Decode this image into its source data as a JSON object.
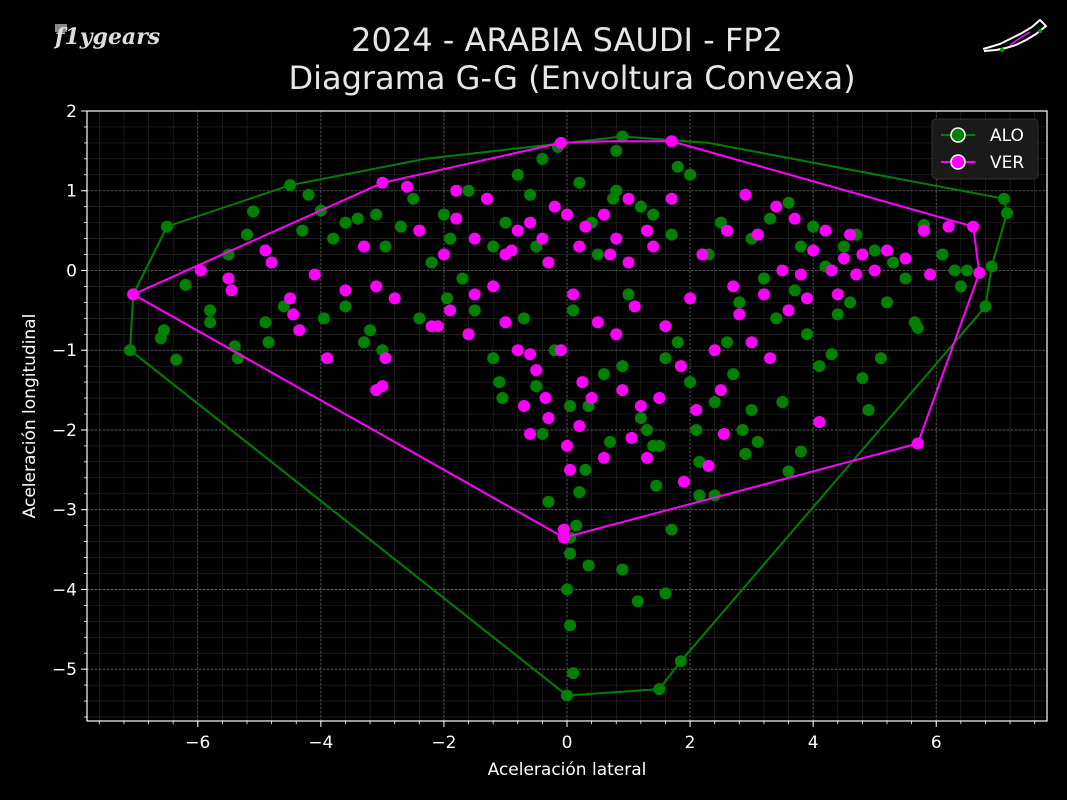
{
  "header": {
    "title_line1": "2024 - ARABIA SAUDI - FP2",
    "title_line2": "Diagrama G-G (Envoltura Convexa)",
    "logo_text": "f1ygears"
  },
  "chart_data": {
    "type": "scatter",
    "title": "2024 - ARABIA SAUDI - FP2\nDiagrama G-G (Envoltura Convexa)",
    "xlabel": "Aceleración lateral",
    "ylabel": "Aceleración longitudinal",
    "xlim": [
      -7.8,
      7.8
    ],
    "ylim": [
      -5.65,
      2.0
    ],
    "xticks": [
      -6,
      -4,
      -2,
      0,
      2,
      4,
      6
    ],
    "yticks": [
      -5,
      -4,
      -3,
      -2,
      -1,
      0,
      1,
      2
    ],
    "xtick_labels": [
      "−6",
      "−4",
      "−2",
      "0",
      "2",
      "4",
      "6"
    ],
    "ytick_labels": [
      "−5",
      "−4",
      "−3",
      "−2",
      "−1",
      "0",
      "1",
      "2"
    ],
    "grid": true,
    "legend_position": "top-right",
    "series": [
      {
        "name": "ALO",
        "color": "#008000",
        "hull": [
          [
            -7.1,
            -1.0
          ],
          [
            -7.05,
            -0.3
          ],
          [
            -6.5,
            0.55
          ],
          [
            -4.5,
            1.07
          ],
          [
            -2.3,
            1.4
          ],
          [
            0.9,
            1.68
          ],
          [
            2.3,
            1.6
          ],
          [
            7.1,
            0.9
          ],
          [
            7.15,
            0.72
          ],
          [
            6.9,
            0.05
          ],
          [
            6.8,
            -0.45
          ],
          [
            1.85,
            -4.9
          ],
          [
            1.5,
            -5.25
          ],
          [
            0.0,
            -5.33
          ]
        ],
        "points": [
          [
            -7.1,
            -1.0
          ],
          [
            -7.05,
            -0.3
          ],
          [
            -6.5,
            0.55
          ],
          [
            -4.5,
            1.07
          ],
          [
            0.9,
            1.68
          ],
          [
            7.1,
            0.9
          ],
          [
            7.15,
            0.72
          ],
          [
            6.9,
            0.05
          ],
          [
            6.8,
            -0.45
          ],
          [
            1.85,
            -4.9
          ],
          [
            1.5,
            -5.25
          ],
          [
            0.0,
            -5.33
          ],
          [
            0.1,
            -5.05
          ],
          [
            0.05,
            -4.45
          ],
          [
            0.0,
            -4.0
          ],
          [
            0.05,
            -3.55
          ],
          [
            0.35,
            -3.7
          ],
          [
            0.9,
            -3.75
          ],
          [
            1.15,
            -4.15
          ],
          [
            1.6,
            -4.05
          ],
          [
            1.7,
            -3.25
          ],
          [
            0.05,
            -3.35
          ],
          [
            0.15,
            -3.2
          ],
          [
            -0.3,
            -2.9
          ],
          [
            0.2,
            -2.78
          ],
          [
            1.45,
            -2.7
          ],
          [
            2.15,
            -2.82
          ],
          [
            2.4,
            -2.82
          ],
          [
            3.6,
            -2.52
          ],
          [
            3.8,
            -2.27
          ],
          [
            -6.2,
            -0.18
          ],
          [
            -6.6,
            -0.85
          ],
          [
            -6.55,
            -0.75
          ],
          [
            -6.35,
            -1.12
          ],
          [
            -5.8,
            -0.5
          ],
          [
            -5.8,
            -0.65
          ],
          [
            -5.4,
            -0.95
          ],
          [
            -5.35,
            -1.1
          ],
          [
            -5.5,
            0.2
          ],
          [
            -5.2,
            0.45
          ],
          [
            -5.1,
            0.74
          ],
          [
            -4.9,
            -0.65
          ],
          [
            -4.85,
            -0.9
          ],
          [
            -4.6,
            -0.45
          ],
          [
            -4.3,
            0.5
          ],
          [
            -4.2,
            0.95
          ],
          [
            -4.0,
            0.75
          ],
          [
            -3.95,
            -0.6
          ],
          [
            -3.8,
            0.4
          ],
          [
            -3.6,
            -0.45
          ],
          [
            -3.6,
            0.6
          ],
          [
            -3.4,
            0.65
          ],
          [
            -3.3,
            -0.9
          ],
          [
            -3.2,
            -0.75
          ],
          [
            -3.0,
            -1.0
          ],
          [
            -2.95,
            0.3
          ],
          [
            -2.7,
            0.55
          ],
          [
            -2.5,
            0.9
          ],
          [
            -2.4,
            -0.6
          ],
          [
            -2.0,
            0.7
          ],
          [
            -1.95,
            -0.35
          ],
          [
            -1.9,
            0.4
          ],
          [
            -1.6,
            1.0
          ],
          [
            -1.5,
            -0.5
          ],
          [
            -1.2,
            -1.1
          ],
          [
            -1.2,
            0.3
          ],
          [
            -1.1,
            -1.4
          ],
          [
            -1.05,
            -1.6
          ],
          [
            -0.8,
            1.2
          ],
          [
            -0.7,
            -0.6
          ],
          [
            -0.6,
            0.95
          ],
          [
            -0.5,
            -1.45
          ],
          [
            -0.4,
            -2.05
          ],
          [
            -0.4,
            1.4
          ],
          [
            -0.2,
            -1.0
          ],
          [
            -0.15,
            1.55
          ],
          [
            0.05,
            -1.7
          ],
          [
            0.1,
            -0.5
          ],
          [
            0.2,
            1.1
          ],
          [
            0.3,
            -2.5
          ],
          [
            0.35,
            -1.7
          ],
          [
            0.4,
            0.6
          ],
          [
            0.6,
            -1.3
          ],
          [
            0.7,
            -2.15
          ],
          [
            0.75,
            0.9
          ],
          [
            0.8,
            1.5
          ],
          [
            0.9,
            -1.2
          ],
          [
            1.0,
            -0.3
          ],
          [
            1.2,
            -1.85
          ],
          [
            1.2,
            0.8
          ],
          [
            1.3,
            -2.0
          ],
          [
            1.4,
            -2.2
          ],
          [
            1.5,
            -2.2
          ],
          [
            1.6,
            -1.1
          ],
          [
            1.7,
            0.45
          ],
          [
            1.8,
            -0.9
          ],
          [
            1.8,
            1.3
          ],
          [
            2.0,
            1.2
          ],
          [
            2.0,
            -1.4
          ],
          [
            2.1,
            -2.0
          ],
          [
            2.15,
            -2.4
          ],
          [
            2.3,
            0.2
          ],
          [
            2.4,
            -1.65
          ],
          [
            2.6,
            -0.9
          ],
          [
            2.7,
            -1.3
          ],
          [
            2.8,
            -0.4
          ],
          [
            2.85,
            -2.0
          ],
          [
            2.9,
            -2.3
          ],
          [
            3.0,
            0.4
          ],
          [
            3.0,
            -1.75
          ],
          [
            3.1,
            -2.15
          ],
          [
            3.3,
            0.65
          ],
          [
            3.4,
            -0.6
          ],
          [
            3.5,
            -1.65
          ],
          [
            3.6,
            0.85
          ],
          [
            3.7,
            -0.25
          ],
          [
            3.8,
            0.3
          ],
          [
            3.9,
            -0.8
          ],
          [
            4.0,
            0.55
          ],
          [
            4.1,
            -1.2
          ],
          [
            4.2,
            0.05
          ],
          [
            4.3,
            -1.05
          ],
          [
            4.4,
            -0.55
          ],
          [
            4.5,
            0.3
          ],
          [
            4.6,
            -0.4
          ],
          [
            4.7,
            0.45
          ],
          [
            4.8,
            -1.35
          ],
          [
            4.9,
            -1.75
          ],
          [
            5.0,
            0.25
          ],
          [
            5.1,
            -1.1
          ],
          [
            5.2,
            -0.4
          ],
          [
            5.3,
            0.1
          ],
          [
            5.5,
            -0.1
          ],
          [
            5.65,
            -0.65
          ],
          [
            5.7,
            -0.72
          ],
          [
            5.8,
            0.57
          ],
          [
            6.1,
            0.2
          ],
          [
            6.3,
            0.0
          ],
          [
            6.4,
            -0.2
          ],
          [
            6.5,
            0.0
          ],
          [
            -3.1,
            0.7
          ],
          [
            -2.2,
            0.1
          ],
          [
            -1.0,
            0.6
          ],
          [
            0.5,
            0.2
          ],
          [
            1.4,
            0.7
          ],
          [
            2.5,
            0.6
          ],
          [
            -1.7,
            -0.1
          ],
          [
            0.8,
            1.0
          ],
          [
            3.2,
            -0.1
          ],
          [
            -0.5,
            0.3
          ]
        ]
      },
      {
        "name": "VER",
        "color": "#ff00ff",
        "hull": [
          [
            -7.05,
            -0.3
          ],
          [
            -3.0,
            1.1
          ],
          [
            -0.1,
            1.6
          ],
          [
            0.65,
            1.62
          ],
          [
            1.7,
            1.62
          ],
          [
            6.6,
            0.55
          ],
          [
            6.7,
            -0.03
          ],
          [
            5.7,
            -2.17
          ],
          [
            -0.05,
            -3.35
          ]
        ],
        "points": [
          [
            -7.05,
            -0.3
          ],
          [
            -3.0,
            1.1
          ],
          [
            -0.1,
            1.6
          ],
          [
            1.7,
            1.62
          ],
          [
            6.6,
            0.55
          ],
          [
            6.7,
            -0.03
          ],
          [
            5.7,
            -2.17
          ],
          [
            -0.05,
            -3.35
          ],
          [
            -0.05,
            -3.25
          ],
          [
            -5.95,
            0.0
          ],
          [
            -5.5,
            -0.1
          ],
          [
            -5.45,
            -0.25
          ],
          [
            -4.9,
            0.25
          ],
          [
            -4.8,
            0.1
          ],
          [
            -4.5,
            -0.35
          ],
          [
            -4.45,
            -0.55
          ],
          [
            -4.35,
            -0.75
          ],
          [
            -4.1,
            -0.05
          ],
          [
            -3.9,
            -1.1
          ],
          [
            -3.6,
            -0.25
          ],
          [
            -3.3,
            0.3
          ],
          [
            -3.1,
            -0.2
          ],
          [
            -3.1,
            -1.5
          ],
          [
            -3.0,
            -1.45
          ],
          [
            -2.95,
            -1.1
          ],
          [
            -2.8,
            -0.35
          ],
          [
            -2.6,
            1.05
          ],
          [
            -2.4,
            0.5
          ],
          [
            -2.2,
            -0.7
          ],
          [
            -2.1,
            -0.7
          ],
          [
            -2.0,
            0.2
          ],
          [
            -1.9,
            -0.5
          ],
          [
            -1.8,
            0.65
          ],
          [
            -1.6,
            -0.8
          ],
          [
            -1.5,
            -0.3
          ],
          [
            -1.3,
            0.9
          ],
          [
            -1.2,
            -0.2
          ],
          [
            -1.0,
            -0.65
          ],
          [
            -0.9,
            0.25
          ],
          [
            -0.8,
            -1.0
          ],
          [
            -0.7,
            -1.7
          ],
          [
            -0.6,
            -2.05
          ],
          [
            -0.6,
            -1.05
          ],
          [
            -0.5,
            -1.25
          ],
          [
            -0.4,
            0.4
          ],
          [
            -0.35,
            -1.6
          ],
          [
            -0.3,
            -1.85
          ],
          [
            -0.2,
            0.8
          ],
          [
            -0.1,
            -1.0
          ],
          [
            0.0,
            -2.2
          ],
          [
            0.05,
            -2.5
          ],
          [
            0.1,
            -0.3
          ],
          [
            0.2,
            -1.95
          ],
          [
            0.25,
            -1.4
          ],
          [
            0.3,
            0.55
          ],
          [
            0.4,
            -1.6
          ],
          [
            0.5,
            -0.65
          ],
          [
            0.6,
            -2.35
          ],
          [
            0.7,
            0.2
          ],
          [
            0.8,
            -0.8
          ],
          [
            0.9,
            -1.5
          ],
          [
            1.0,
            0.9
          ],
          [
            1.05,
            -2.1
          ],
          [
            1.1,
            -0.45
          ],
          [
            1.2,
            -1.7
          ],
          [
            1.3,
            -2.35
          ],
          [
            1.4,
            0.3
          ],
          [
            1.5,
            -1.6
          ],
          [
            1.6,
            -0.7
          ],
          [
            1.7,
            0.9
          ],
          [
            1.85,
            -1.2
          ],
          [
            1.9,
            -2.65
          ],
          [
            2.0,
            -0.35
          ],
          [
            2.1,
            -1.75
          ],
          [
            2.2,
            0.2
          ],
          [
            2.3,
            -2.45
          ],
          [
            2.4,
            -1.0
          ],
          [
            2.5,
            -1.5
          ],
          [
            2.55,
            -2.05
          ],
          [
            2.6,
            0.5
          ],
          [
            2.7,
            -0.2
          ],
          [
            2.8,
            -0.55
          ],
          [
            2.9,
            0.95
          ],
          [
            3.0,
            -0.9
          ],
          [
            3.1,
            0.45
          ],
          [
            3.2,
            -0.3
          ],
          [
            3.3,
            -1.1
          ],
          [
            3.4,
            0.8
          ],
          [
            3.5,
            0.0
          ],
          [
            3.6,
            -0.5
          ],
          [
            3.7,
            0.65
          ],
          [
            3.8,
            -0.05
          ],
          [
            3.9,
            -0.35
          ],
          [
            4.0,
            0.25
          ],
          [
            4.1,
            -1.9
          ],
          [
            4.2,
            0.5
          ],
          [
            4.3,
            0.0
          ],
          [
            4.4,
            -0.3
          ],
          [
            4.5,
            0.15
          ],
          [
            4.6,
            0.45
          ],
          [
            4.7,
            -0.05
          ],
          [
            4.8,
            0.2
          ],
          [
            5.0,
            0.0
          ],
          [
            5.2,
            0.25
          ],
          [
            5.5,
            0.15
          ],
          [
            5.8,
            0.5
          ],
          [
            5.9,
            -0.05
          ],
          [
            6.2,
            0.55
          ],
          [
            -1.8,
            1.0
          ],
          [
            -0.8,
            0.5
          ],
          [
            0.2,
            0.3
          ],
          [
            1.0,
            0.1
          ],
          [
            -1.0,
            0.2
          ],
          [
            0.6,
            0.7
          ],
          [
            -0.3,
            0.1
          ],
          [
            1.3,
            0.5
          ],
          [
            -1.5,
            0.4
          ],
          [
            0.0,
            0.7
          ],
          [
            0.8,
            0.4
          ],
          [
            -0.6,
            0.6
          ]
        ]
      }
    ]
  }
}
